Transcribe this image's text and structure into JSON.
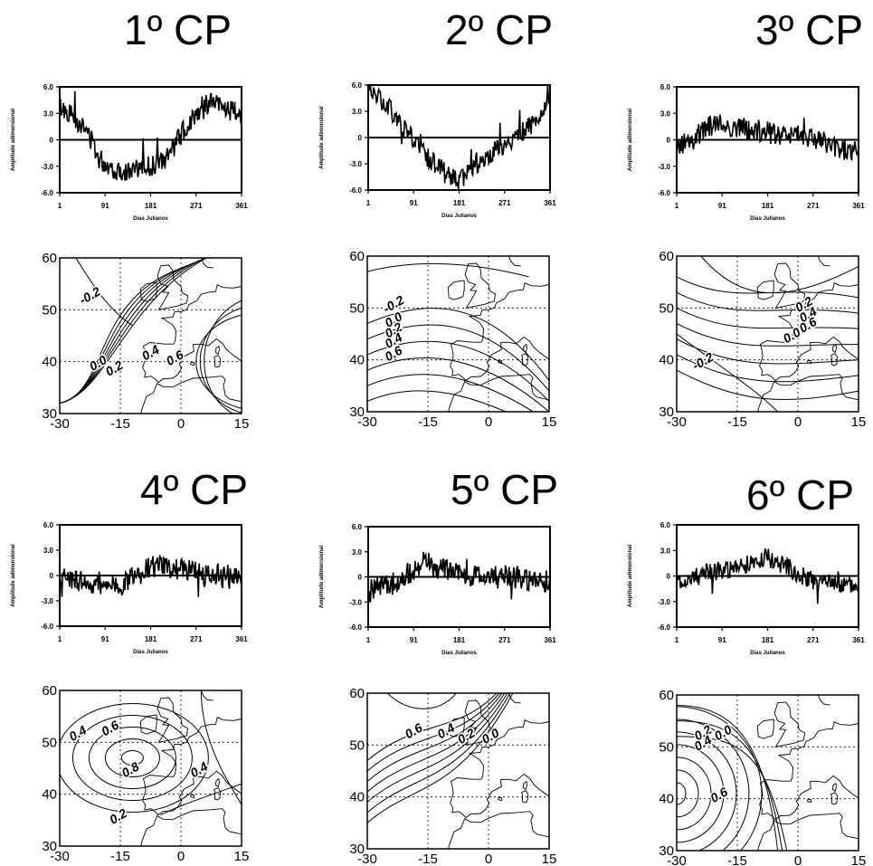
{
  "panels": [
    {
      "title": "1º CP",
      "ts": {
        "yticks": [
          "6.0",
          "3.0",
          "0",
          "-3.0",
          "-6.0"
        ],
        "xticks": [
          "1",
          "91",
          "181",
          "271",
          "361"
        ],
        "xlabel": "Dias Julianos",
        "ylabel": "Amplitude adimensional",
        "anchors": [
          [
            1,
            3.8
          ],
          [
            30,
            2.6
          ],
          [
            60,
            0.5
          ],
          [
            80,
            -2.2
          ],
          [
            110,
            -3.4
          ],
          [
            140,
            -3.6
          ],
          [
            180,
            -3.0
          ],
          [
            210,
            -2.4
          ],
          [
            240,
            0.5
          ],
          [
            270,
            3.0
          ],
          [
            300,
            4.3
          ],
          [
            330,
            3.5
          ],
          [
            361,
            2.8
          ]
        ],
        "noise": 1.2
      },
      "map": {
        "xticks": [
          "-30",
          "-15",
          "0",
          "15"
        ],
        "yticks": [
          "30",
          "40",
          "50",
          "60"
        ],
        "contour_labels": [
          "-0.2",
          "0.0",
          "0.2",
          "0.4",
          "0.6"
        ]
      }
    },
    {
      "title": "2º CP",
      "ts": {
        "yticks": [
          "6.0",
          "3.0",
          "0",
          "-3.0",
          "-6.0"
        ],
        "xticks": [
          "1",
          "91",
          "181",
          "271",
          "361"
        ],
        "xlabel": "Dias Julianos",
        "ylabel": "Amplitude adimensional",
        "anchors": [
          [
            1,
            5.6
          ],
          [
            40,
            3.5
          ],
          [
            80,
            0.5
          ],
          [
            120,
            -2.4
          ],
          [
            180,
            -5.0
          ],
          [
            220,
            -2.8
          ],
          [
            270,
            -0.8
          ],
          [
            310,
            0.8
          ],
          [
            340,
            2.0
          ],
          [
            361,
            5.0
          ]
        ],
        "noise": 1.1
      },
      "map": {
        "xticks": [
          "-30",
          "-15",
          "0",
          "15"
        ],
        "yticks": [
          "30",
          "40",
          "50",
          "60"
        ],
        "contour_labels": [
          "-0.2",
          "0.0",
          "0.2",
          "0.4",
          "0.6"
        ]
      }
    },
    {
      "title": "3º CP",
      "ts": {
        "yticks": [
          "6.0",
          "3.0",
          "0",
          "-3.0",
          "-6.0"
        ],
        "xticks": [
          "1",
          "91",
          "181",
          "271",
          "361"
        ],
        "xlabel": "Dias Julianos",
        "ylabel": "Amplitude adimensional",
        "anchors": [
          [
            1,
            -1.0
          ],
          [
            40,
            0.3
          ],
          [
            80,
            2.0
          ],
          [
            130,
            1.4
          ],
          [
            180,
            0.8
          ],
          [
            230,
            0.6
          ],
          [
            270,
            0.4
          ],
          [
            310,
            -0.8
          ],
          [
            361,
            -1.4
          ]
        ],
        "noise": 1.3
      },
      "map": {
        "xticks": [
          "-30",
          "-15",
          "0",
          "15"
        ],
        "yticks": [
          "30",
          "40",
          "50",
          "60"
        ],
        "contour_labels": [
          "-0.2",
          "0.0",
          "0.2",
          "0.4",
          "0.6"
        ]
      }
    },
    {
      "title": "4º CP",
      "ts": {
        "yticks": [
          "6.0",
          "3.0",
          "0",
          "-3.0",
          "-6.0"
        ],
        "xticks": [
          "1",
          "91",
          "181",
          "271",
          "361"
        ],
        "xlabel": "Dias Julianos",
        "ylabel": "Amplitude adimensional",
        "anchors": [
          [
            1,
            0.0
          ],
          [
            60,
            -1.0
          ],
          [
            120,
            -1.3
          ],
          [
            160,
            0.8
          ],
          [
            200,
            1.2
          ],
          [
            250,
            0.6
          ],
          [
            300,
            0.2
          ],
          [
            361,
            0.0
          ]
        ],
        "noise": 1.3
      },
      "map": {
        "xticks": [
          "-30",
          "-15",
          "0",
          "15"
        ],
        "yticks": [
          "30",
          "40",
          "50",
          "60"
        ],
        "contour_labels": [
          "0.4",
          "0.6",
          "0.8",
          "0.4",
          "0.2"
        ]
      }
    },
    {
      "title": "5º CP",
      "ts": {
        "yticks": [
          "6.0",
          "3.0",
          "0",
          "-3.0",
          "-6.0"
        ],
        "xticks": [
          "1",
          "91",
          "181",
          "271",
          "361"
        ],
        "xlabel": "Dias Julianos",
        "ylabel": "Amplitude adimensional",
        "anchors": [
          [
            1,
            -1.8
          ],
          [
            60,
            -0.6
          ],
          [
            110,
            1.8
          ],
          [
            150,
            0.8
          ],
          [
            200,
            0.2
          ],
          [
            250,
            0.0
          ],
          [
            300,
            0.0
          ],
          [
            340,
            -0.6
          ],
          [
            361,
            -0.4
          ]
        ],
        "noise": 1.4
      },
      "map": {
        "xticks": [
          "-30",
          "-15",
          "0",
          "15"
        ],
        "yticks": [
          "30",
          "40",
          "50",
          "60"
        ],
        "contour_labels": [
          "0.6",
          "0.4",
          "0.2",
          "0.0"
        ]
      }
    },
    {
      "title": "6º CP",
      "ts": {
        "yticks": [
          "6.0",
          "3.0",
          "0",
          "-3.0",
          "-6.0"
        ],
        "xticks": [
          "1",
          "91",
          "181",
          "271",
          "361"
        ],
        "xlabel": "Dias Julianos",
        "ylabel": "Amplitude adimensional",
        "anchors": [
          [
            1,
            -1.0
          ],
          [
            60,
            0.4
          ],
          [
            120,
            1.0
          ],
          [
            180,
            2.2
          ],
          [
            220,
            1.0
          ],
          [
            270,
            -0.6
          ],
          [
            320,
            -1.0
          ],
          [
            361,
            -1.2
          ]
        ],
        "noise": 1.1
      },
      "map": {
        "xticks": [
          "-30",
          "-15",
          "0",
          "15"
        ],
        "yticks": [
          "30",
          "40",
          "50",
          "60"
        ],
        "contour_labels": [
          "0.2",
          "0.0",
          "0.4",
          "0.6"
        ]
      }
    }
  ],
  "chart_data": [
    {
      "type": "line",
      "title": "1º CP",
      "xlabel": "Dias Julianos",
      "ylabel": "Amplitude adimensional",
      "xlim": [
        1,
        361
      ],
      "ylim": [
        -6,
        6
      ],
      "series": [
        {
          "x": [
            1,
            30,
            60,
            80,
            110,
            140,
            180,
            210,
            240,
            270,
            300,
            330,
            361
          ],
          "values": [
            3.8,
            2.6,
            0.5,
            -2.2,
            -3.4,
            -3.6,
            -3.0,
            -2.4,
            0.5,
            3.0,
            4.3,
            3.5,
            2.8
          ]
        }
      ]
    },
    {
      "type": "line",
      "title": "2º CP",
      "xlabel": "Dias Julianos",
      "ylabel": "Amplitude adimensional",
      "xlim": [
        1,
        361
      ],
      "ylim": [
        -6,
        6
      ],
      "series": [
        {
          "x": [
            1,
            40,
            80,
            120,
            180,
            220,
            270,
            310,
            340,
            361
          ],
          "values": [
            5.6,
            3.5,
            0.5,
            -2.4,
            -5.0,
            -2.8,
            -0.8,
            0.8,
            2.0,
            5.0
          ]
        }
      ]
    },
    {
      "type": "line",
      "title": "3º CP",
      "xlabel": "Dias Julianos",
      "ylabel": "Amplitude adimensional",
      "xlim": [
        1,
        361
      ],
      "ylim": [
        -6,
        6
      ],
      "series": [
        {
          "x": [
            1,
            40,
            80,
            130,
            180,
            230,
            270,
            310,
            361
          ],
          "values": [
            -1.0,
            0.3,
            2.0,
            1.4,
            0.8,
            0.6,
            0.4,
            -0.8,
            -1.4
          ]
        }
      ]
    },
    {
      "type": "line",
      "title": "4º CP",
      "xlabel": "Dias Julianos",
      "ylabel": "Amplitude adimensional",
      "xlim": [
        1,
        361
      ],
      "ylim": [
        -6,
        6
      ],
      "series": [
        {
          "x": [
            1,
            60,
            120,
            160,
            200,
            250,
            300,
            361
          ],
          "values": [
            0.0,
            -1.0,
            -1.3,
            0.8,
            1.2,
            0.6,
            0.2,
            0.0
          ]
        }
      ]
    },
    {
      "type": "line",
      "title": "5º CP",
      "xlabel": "Dias Julianos",
      "ylabel": "Amplitude adimensional",
      "xlim": [
        1,
        361
      ],
      "ylim": [
        -6,
        6
      ],
      "series": [
        {
          "x": [
            1,
            60,
            110,
            150,
            200,
            250,
            300,
            340,
            361
          ],
          "values": [
            -1.8,
            -0.6,
            1.8,
            0.8,
            0.2,
            0.0,
            0.0,
            -0.6,
            -0.4
          ]
        }
      ]
    },
    {
      "type": "line",
      "title": "6º CP",
      "xlabel": "Dias Julianos",
      "ylabel": "Amplitude adimensional",
      "xlim": [
        1,
        361
      ],
      "ylim": [
        -6,
        6
      ],
      "series": [
        {
          "x": [
            1,
            60,
            120,
            180,
            220,
            270,
            320,
            361
          ],
          "values": [
            -1.0,
            0.4,
            1.0,
            2.2,
            1.0,
            -0.6,
            -1.0,
            -1.2
          ]
        }
      ]
    }
  ]
}
